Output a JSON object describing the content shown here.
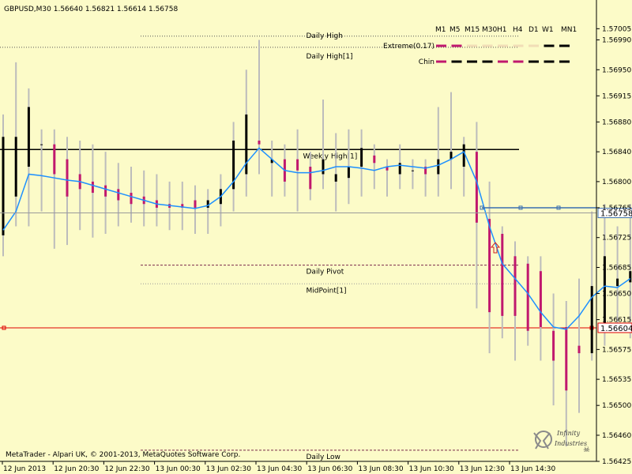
{
  "header": {
    "symbol_line": "GBPUSD,M30  1.56640 1.56821 1.56614 1.56758"
  },
  "footer": {
    "copyright": "MetaTrader - Alpari UK, © 2001-2013, MetaQuotes Software Corp.",
    "logo_text_1": "Infinity",
    "logo_text_2": "Industries"
  },
  "timeframes": [
    "M1",
    "M5",
    "M15",
    "M30",
    "H1",
    "H4",
    "D1",
    "W1",
    "MN1"
  ],
  "indicator_rows": [
    {
      "label": "Extreme(0.17)",
      "states": [
        "m",
        "m",
        "l",
        "l",
        "l",
        "l",
        "l",
        "k",
        "k"
      ]
    },
    {
      "label": "Chin",
      "states": [
        "m",
        "k",
        "k",
        "k",
        "m",
        "m",
        "k",
        "k",
        "k"
      ]
    }
  ],
  "colors": {
    "bg": "#fcfbc8",
    "bull": "#000000",
    "bear": "#c0186e",
    "wick": "#bcbcbc",
    "ma": "#1e90ff",
    "support": "#e00000",
    "weekly": "#000000",
    "current": "#3a6fb0"
  },
  "levels": [
    {
      "label": "Daily High",
      "value": 1.56995,
      "style": "dotted",
      "color": "#555555"
    },
    {
      "label": "Daily High[1]",
      "value": 1.5698,
      "style": "dotted",
      "color": "#555555"
    },
    {
      "label": "Weekly High[1]",
      "value": 1.56843,
      "style": "solid",
      "color": "#000000"
    },
    {
      "label": "Daily Pivot",
      "value": 1.56688,
      "style": "dashed",
      "color": "#7a2a4a"
    },
    {
      "label": "MidPoint[1]",
      "value": 1.56663,
      "style": "dotted",
      "color": "#999999"
    },
    {
      "label": "Daily Low",
      "value": 1.5644,
      "style": "dashed",
      "color": "#7a2a4a"
    }
  ],
  "price_tags": {
    "current": "1.56758",
    "support": "1.56604"
  },
  "chart_data": {
    "type": "candlestick",
    "symbol": "GBPUSD",
    "timeframe": "M30",
    "ylim": [
      1.56425,
      1.57035
    ],
    "y_ticks": [
      "1.57005",
      "1.56990",
      "1.56950",
      "1.56915",
      "1.56880",
      "1.56840",
      "1.56800",
      "1.56765",
      "1.56725",
      "1.56685",
      "1.56650",
      "1.56615",
      "1.56575",
      "1.56535",
      "1.56500",
      "1.56460",
      "1.56425"
    ],
    "y_tick_values": [
      1.57005,
      1.5699,
      1.5695,
      1.56915,
      1.5688,
      1.5684,
      1.568,
      1.56765,
      1.56725,
      1.56685,
      1.5665,
      1.56615,
      1.56575,
      1.56535,
      1.565,
      1.5646,
      1.56425
    ],
    "x_labels": [
      "12 Jun 2013",
      "12 Jun 20:30",
      "12 Jun 22:30",
      "13 Jun 00:30",
      "13 Jun 02:30",
      "13 Jun 04:30",
      "13 Jun 06:30",
      "13 Jun 08:30",
      "13 Jun 10:30",
      "13 Jun 12:30",
      "13 Jun 14:30"
    ],
    "current_price": 1.56758,
    "support_price": 1.56604,
    "candles": [
      {
        "o": 1.56728,
        "h": 1.5689,
        "l": 1.567,
        "c": 1.5686
      },
      {
        "o": 1.5678,
        "h": 1.5696,
        "l": 1.5674,
        "c": 1.5686
      },
      {
        "o": 1.5682,
        "h": 1.56925,
        "l": 1.5674,
        "c": 1.569
      },
      {
        "o": 1.5685,
        "h": 1.5687,
        "l": 1.5676,
        "c": 1.5685
      },
      {
        "o": 1.5685,
        "h": 1.5687,
        "l": 1.5671,
        "c": 1.5681
      },
      {
        "o": 1.5683,
        "h": 1.5686,
        "l": 1.56715,
        "c": 1.5678
      },
      {
        "o": 1.5681,
        "h": 1.56855,
        "l": 1.56735,
        "c": 1.5679
      },
      {
        "o": 1.568,
        "h": 1.5685,
        "l": 1.56725,
        "c": 1.56785
      },
      {
        "o": 1.56795,
        "h": 1.5684,
        "l": 1.5673,
        "c": 1.5678
      },
      {
        "o": 1.5679,
        "h": 1.56825,
        "l": 1.5674,
        "c": 1.56775
      },
      {
        "o": 1.56785,
        "h": 1.5682,
        "l": 1.56745,
        "c": 1.5677
      },
      {
        "o": 1.5678,
        "h": 1.56815,
        "l": 1.5674,
        "c": 1.5677
      },
      {
        "o": 1.56775,
        "h": 1.5681,
        "l": 1.5674,
        "c": 1.56765
      },
      {
        "o": 1.5677,
        "h": 1.568,
        "l": 1.56735,
        "c": 1.56765
      },
      {
        "o": 1.5677,
        "h": 1.568,
        "l": 1.56735,
        "c": 1.56765
      },
      {
        "o": 1.56775,
        "h": 1.56795,
        "l": 1.5673,
        "c": 1.56765
      },
      {
        "o": 1.56765,
        "h": 1.5679,
        "l": 1.5673,
        "c": 1.56775
      },
      {
        "o": 1.5677,
        "h": 1.5681,
        "l": 1.5674,
        "c": 1.5679
      },
      {
        "o": 1.5679,
        "h": 1.5688,
        "l": 1.5676,
        "c": 1.56855
      },
      {
        "o": 1.5681,
        "h": 1.5695,
        "l": 1.5678,
        "c": 1.5689
      },
      {
        "o": 1.56855,
        "h": 1.5699,
        "l": 1.5681,
        "c": 1.5685
      },
      {
        "o": 1.56825,
        "h": 1.56855,
        "l": 1.5678,
        "c": 1.5683
      },
      {
        "o": 1.5683,
        "h": 1.5685,
        "l": 1.5678,
        "c": 1.568
      },
      {
        "o": 1.5683,
        "h": 1.5687,
        "l": 1.5676,
        "c": 1.56815
      },
      {
        "o": 1.5682,
        "h": 1.5684,
        "l": 1.56775,
        "c": 1.5679
      },
      {
        "o": 1.5681,
        "h": 1.5691,
        "l": 1.5679,
        "c": 1.5683
      },
      {
        "o": 1.568,
        "h": 1.56865,
        "l": 1.5676,
        "c": 1.5681
      },
      {
        "o": 1.56805,
        "h": 1.5687,
        "l": 1.5677,
        "c": 1.5682
      },
      {
        "o": 1.5682,
        "h": 1.5687,
        "l": 1.5678,
        "c": 1.56845
      },
      {
        "o": 1.56835,
        "h": 1.5685,
        "l": 1.5679,
        "c": 1.56825
      },
      {
        "o": 1.5682,
        "h": 1.5683,
        "l": 1.5678,
        "c": 1.56815
      },
      {
        "o": 1.5681,
        "h": 1.5685,
        "l": 1.5679,
        "c": 1.56825
      },
      {
        "o": 1.56815,
        "h": 1.5683,
        "l": 1.5679,
        "c": 1.56815
      },
      {
        "o": 1.5682,
        "h": 1.5683,
        "l": 1.5678,
        "c": 1.5681
      },
      {
        "o": 1.5681,
        "h": 1.569,
        "l": 1.5678,
        "c": 1.5683
      },
      {
        "o": 1.5683,
        "h": 1.5692,
        "l": 1.5679,
        "c": 1.5684
      },
      {
        "o": 1.5682,
        "h": 1.5686,
        "l": 1.5678,
        "c": 1.5685
      },
      {
        "o": 1.5684,
        "h": 1.5688,
        "l": 1.5663,
        "c": 1.56745
      },
      {
        "o": 1.5675,
        "h": 1.568,
        "l": 1.5657,
        "c": 1.56625
      },
      {
        "o": 1.5673,
        "h": 1.5674,
        "l": 1.5659,
        "c": 1.5662
      },
      {
        "o": 1.567,
        "h": 1.5672,
        "l": 1.5656,
        "c": 1.5662
      },
      {
        "o": 1.5669,
        "h": 1.567,
        "l": 1.5658,
        "c": 1.566
      },
      {
        "o": 1.5668,
        "h": 1.567,
        "l": 1.5656,
        "c": 1.56605
      },
      {
        "o": 1.566,
        "h": 1.5665,
        "l": 1.565,
        "c": 1.5656
      },
      {
        "o": 1.56605,
        "h": 1.5664,
        "l": 1.56445,
        "c": 1.5652
      },
      {
        "o": 1.5658,
        "h": 1.5667,
        "l": 1.5649,
        "c": 1.5657
      },
      {
        "o": 1.5657,
        "h": 1.5676,
        "l": 1.5656,
        "c": 1.5666
      },
      {
        "o": 1.56605,
        "h": 1.5677,
        "l": 1.5658,
        "c": 1.567
      },
      {
        "o": 1.5666,
        "h": 1.5674,
        "l": 1.566,
        "c": 1.5667
      },
      {
        "o": 1.56665,
        "h": 1.5677,
        "l": 1.5659,
        "c": 1.5668
      }
    ],
    "ma": [
      1.56735,
      1.5676,
      1.5681,
      1.56808,
      1.56805,
      1.56802,
      1.568,
      1.56795,
      1.5679,
      1.56785,
      1.5678,
      1.56775,
      1.5677,
      1.56768,
      1.56766,
      1.56764,
      1.56768,
      1.5678,
      1.568,
      1.56825,
      1.56845,
      1.5683,
      1.56815,
      1.56812,
      1.56812,
      1.56815,
      1.5682,
      1.5682,
      1.56818,
      1.56815,
      1.5682,
      1.56822,
      1.5682,
      1.56818,
      1.56822,
      1.5683,
      1.5684,
      1.568,
      1.5674,
      1.5669,
      1.5667,
      1.5665,
      1.56625,
      1.56605,
      1.56602,
      1.5662,
      1.56645,
      1.5666,
      1.56658,
      1.5667
    ]
  }
}
